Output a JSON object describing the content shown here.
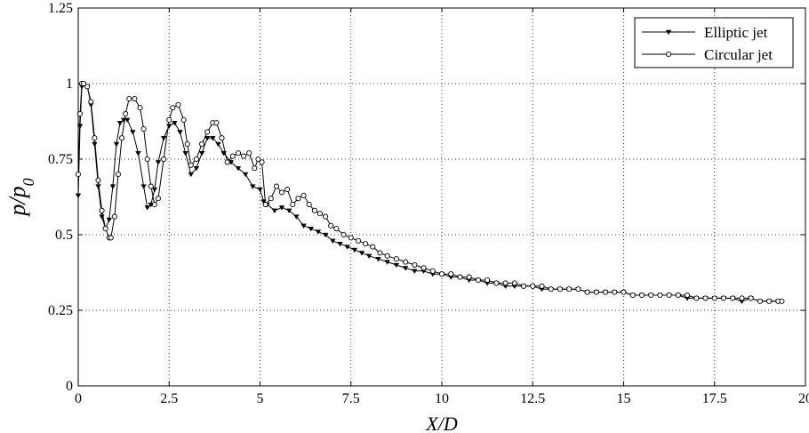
{
  "chart_data": {
    "type": "line",
    "title": "",
    "xlabel": "X/D",
    "ylabel": "p/p",
    "ylabel_subscript": "0",
    "xlim": [
      0,
      20
    ],
    "ylim": [
      0,
      1.25
    ],
    "xticks": [
      0,
      2.5,
      5,
      7.5,
      10,
      12.5,
      15,
      17.5,
      20
    ],
    "xtick_labels": [
      "0",
      "2.5",
      "5",
      "7.5",
      "10",
      "12.5",
      "15",
      "17.5",
      "20"
    ],
    "yticks": [
      0,
      0.25,
      0.5,
      0.75,
      1,
      1.25
    ],
    "ytick_labels": [
      "0",
      "0.25",
      "0.5",
      "0.75",
      "1",
      "1.25"
    ],
    "grid": true,
    "grid_style": "dotted",
    "legend_position": "top-right",
    "series": [
      {
        "name": "Elliptic jet",
        "marker": "triangle-down",
        "color": "#000000",
        "x": [
          0.0,
          0.05,
          0.1,
          0.15,
          0.25,
          0.35,
          0.45,
          0.55,
          0.65,
          0.75,
          0.85,
          0.95,
          1.05,
          1.15,
          1.25,
          1.35,
          1.5,
          1.65,
          1.8,
          1.9,
          2.0,
          2.1,
          2.2,
          2.35,
          2.5,
          2.65,
          2.8,
          2.95,
          3.1,
          3.25,
          3.4,
          3.55,
          3.7,
          3.85,
          4.0,
          4.2,
          4.4,
          4.6,
          4.8,
          5.0,
          5.1,
          5.2,
          5.4,
          5.6,
          5.8,
          6.0,
          6.2,
          6.4,
          6.6,
          6.8,
          7.0,
          7.2,
          7.4,
          7.6,
          7.8,
          8.0,
          8.25,
          8.5,
          8.75,
          9.0,
          9.25,
          9.5,
          9.75,
          10.0,
          10.25,
          10.5,
          10.75,
          11.0,
          11.25,
          11.5,
          11.75,
          12.0,
          12.25,
          12.5,
          12.75,
          13.0,
          13.25,
          13.5,
          13.75,
          14.0,
          14.25,
          14.5,
          14.75,
          15.0,
          15.25,
          15.5,
          15.75,
          16.0,
          16.25,
          16.5,
          16.75,
          17.0,
          17.25,
          17.5,
          17.75,
          18.0,
          18.25,
          18.5,
          18.75,
          19.0,
          19.25
        ],
        "values": [
          0.63,
          0.86,
          0.99,
          1.0,
          0.99,
          0.93,
          0.8,
          0.66,
          0.56,
          0.52,
          0.55,
          0.66,
          0.8,
          0.87,
          0.88,
          0.88,
          0.84,
          0.77,
          0.66,
          0.59,
          0.6,
          0.65,
          0.74,
          0.82,
          0.86,
          0.87,
          0.84,
          0.77,
          0.7,
          0.72,
          0.77,
          0.82,
          0.82,
          0.8,
          0.77,
          0.74,
          0.72,
          0.7,
          0.66,
          0.65,
          0.61,
          0.6,
          0.58,
          0.59,
          0.58,
          0.56,
          0.53,
          0.52,
          0.51,
          0.5,
          0.48,
          0.47,
          0.46,
          0.45,
          0.44,
          0.43,
          0.42,
          0.41,
          0.4,
          0.39,
          0.38,
          0.38,
          0.37,
          0.37,
          0.36,
          0.36,
          0.35,
          0.35,
          0.34,
          0.34,
          0.33,
          0.33,
          0.33,
          0.33,
          0.32,
          0.32,
          0.32,
          0.32,
          0.32,
          0.31,
          0.31,
          0.31,
          0.31,
          0.31,
          0.3,
          0.3,
          0.3,
          0.3,
          0.3,
          0.3,
          0.29,
          0.29,
          0.29,
          0.29,
          0.29,
          0.29,
          0.28,
          0.29,
          0.28,
          0.28,
          0.28
        ]
      },
      {
        "name": "Circular jet",
        "marker": "circle",
        "color": "#000000",
        "x": [
          0.0,
          0.05,
          0.1,
          0.15,
          0.25,
          0.35,
          0.45,
          0.55,
          0.65,
          0.75,
          0.85,
          0.9,
          1.0,
          1.1,
          1.2,
          1.3,
          1.4,
          1.55,
          1.7,
          1.8,
          1.9,
          2.0,
          2.1,
          2.2,
          2.35,
          2.5,
          2.6,
          2.75,
          2.9,
          3.0,
          3.1,
          3.25,
          3.4,
          3.55,
          3.7,
          3.8,
          3.95,
          4.1,
          4.25,
          4.4,
          4.55,
          4.7,
          4.85,
          4.95,
          5.05,
          5.15,
          5.3,
          5.45,
          5.6,
          5.75,
          5.9,
          6.05,
          6.2,
          6.35,
          6.5,
          6.65,
          6.8,
          6.95,
          7.1,
          7.3,
          7.5,
          7.7,
          7.9,
          8.1,
          8.3,
          8.5,
          8.75,
          9.0,
          9.25,
          9.5,
          9.75,
          10.0,
          10.25,
          10.5,
          10.75,
          11.0,
          11.25,
          11.5,
          11.75,
          12.0,
          12.25,
          12.5,
          12.75,
          13.0,
          13.25,
          13.5,
          13.75,
          14.0,
          14.25,
          14.5,
          14.75,
          15.0,
          15.25,
          15.5,
          15.75,
          16.0,
          16.25,
          16.5,
          16.75,
          17.0,
          17.25,
          17.5,
          17.75,
          18.0,
          18.25,
          18.5,
          18.75,
          19.0,
          19.25,
          19.35
        ],
        "values": [
          0.7,
          0.9,
          1.0,
          1.0,
          0.99,
          0.94,
          0.82,
          0.68,
          0.58,
          0.52,
          0.49,
          0.49,
          0.56,
          0.7,
          0.82,
          0.9,
          0.95,
          0.95,
          0.92,
          0.85,
          0.75,
          0.66,
          0.6,
          0.62,
          0.75,
          0.88,
          0.92,
          0.93,
          0.88,
          0.8,
          0.73,
          0.75,
          0.8,
          0.84,
          0.87,
          0.87,
          0.82,
          0.74,
          0.76,
          0.77,
          0.76,
          0.77,
          0.72,
          0.75,
          0.74,
          0.6,
          0.62,
          0.66,
          0.64,
          0.65,
          0.6,
          0.62,
          0.63,
          0.6,
          0.58,
          0.57,
          0.56,
          0.53,
          0.52,
          0.5,
          0.49,
          0.48,
          0.47,
          0.46,
          0.44,
          0.43,
          0.42,
          0.41,
          0.4,
          0.39,
          0.38,
          0.37,
          0.37,
          0.36,
          0.36,
          0.35,
          0.35,
          0.34,
          0.34,
          0.34,
          0.33,
          0.33,
          0.33,
          0.32,
          0.32,
          0.32,
          0.32,
          0.31,
          0.31,
          0.31,
          0.31,
          0.31,
          0.3,
          0.3,
          0.3,
          0.3,
          0.3,
          0.3,
          0.3,
          0.29,
          0.29,
          0.29,
          0.29,
          0.29,
          0.29,
          0.29,
          0.28,
          0.28,
          0.28,
          0.28
        ]
      }
    ]
  }
}
